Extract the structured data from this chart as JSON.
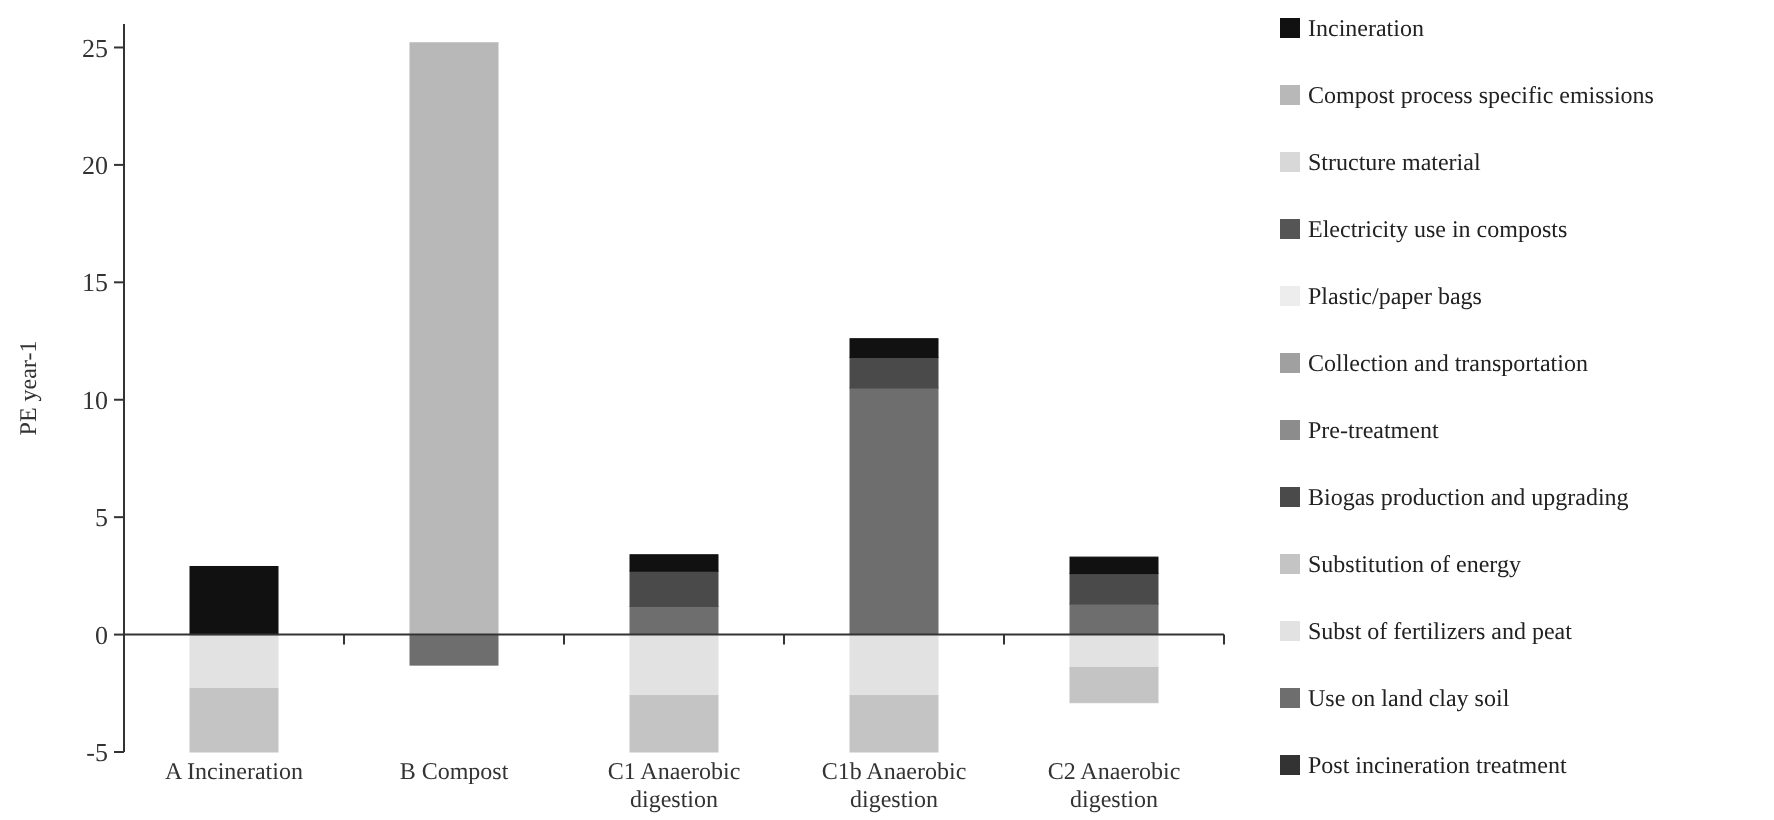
{
  "chart_data": {
    "type": "bar",
    "stacked": true,
    "ylabel": "PE year-1",
    "categories": [
      "A Incineration",
      "B Compost",
      "C1 Anaerobic digestion",
      "C1b Anaerobic digestion",
      "C2 Anaerobic digestion"
    ],
    "ylim": [
      -5,
      26
    ],
    "yticks": [
      -5,
      0,
      5,
      10,
      15,
      20,
      25
    ],
    "legend": "right",
    "series": [
      {
        "name": "Post incineration treatment",
        "color": "#333333",
        "values": [
          null,
          null,
          null,
          null,
          null
        ]
      },
      {
        "name": "Use on land clay soil",
        "color": "#6e6e6e",
        "values": [
          null,
          -1.3,
          1.2,
          10.5,
          1.3
        ]
      },
      {
        "name": "Subst of fertilizers and peat",
        "color": "#e2e2e2",
        "values": [
          -2.3,
          null,
          -2.6,
          -2.6,
          -1.4
        ]
      },
      {
        "name": "Substitution of energy",
        "color": "#c4c4c4",
        "values": [
          -2.7,
          null,
          -2.4,
          -2.4,
          -1.5
        ]
      },
      {
        "name": "Biogas production and upgrading",
        "color": "#4a4a4a",
        "values": [
          null,
          null,
          1.5,
          1.3,
          1.3
        ]
      },
      {
        "name": "Pre-treatment",
        "color": "#8c8c8c",
        "values": [
          null,
          null,
          null,
          null,
          null
        ]
      },
      {
        "name": "Collection and transportation",
        "color": "#a0a0a0",
        "values": [
          null,
          null,
          null,
          null,
          null
        ]
      },
      {
        "name": "Plastic/paper bags",
        "color": "#ededed",
        "values": [
          null,
          null,
          null,
          null,
          null
        ]
      },
      {
        "name": "Electricity use in composts",
        "color": "#555555",
        "values": [
          null,
          null,
          null,
          null,
          null
        ]
      },
      {
        "name": "Structure material",
        "color": "#d8d8d8",
        "values": [
          null,
          null,
          null,
          null,
          null
        ]
      },
      {
        "name": "Compost process specific emissions",
        "color": "#b8b8b8",
        "values": [
          null,
          25.2,
          null,
          null,
          null
        ]
      },
      {
        "name": "Incineration",
        "color": "#111111",
        "values": [
          2.9,
          null,
          0.7,
          0.8,
          0.7
        ]
      }
    ]
  }
}
